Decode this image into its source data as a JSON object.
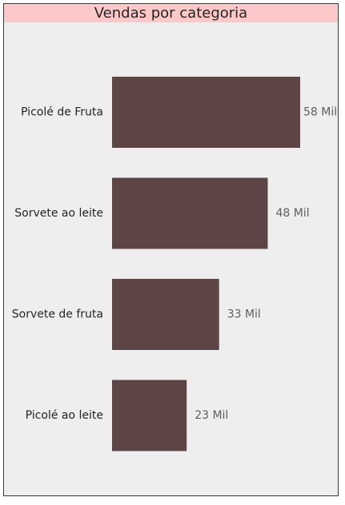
{
  "colors": {
    "title_background": "#ffc8c8",
    "panel_background": "#eeeeee",
    "bar": "#5e4545"
  },
  "chart_data": {
    "type": "bar",
    "orientation": "horizontal",
    "title": "Vendas por categoria",
    "categories": [
      "Picolé de Fruta",
      "Sorvete ao leite",
      "Sorvete de fruta",
      "Picolé ao leite"
    ],
    "values": [
      58,
      48,
      33,
      23
    ],
    "data_labels": [
      "58 Mil",
      "48 Mil",
      "33 Mil",
      "23 Mil"
    ],
    "unit": "Mil",
    "xlim": [
      0,
      58
    ],
    "grid": false,
    "legend": false
  }
}
